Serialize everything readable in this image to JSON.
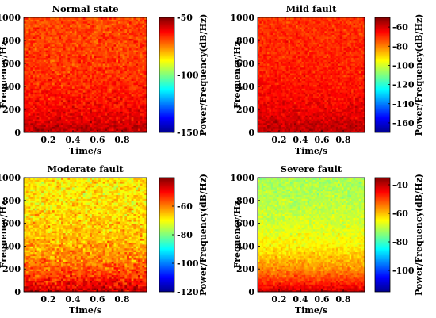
{
  "chart_data": [
    {
      "type": "heatmap",
      "title": "Normal state",
      "xlabel": "Time/s",
      "ylabel": "Frequency/Hz",
      "xlim": [
        0,
        1
      ],
      "ylim": [
        0,
        1000
      ],
      "xticks": [
        "0.2",
        "0.4",
        "0.6",
        "0.8"
      ],
      "yticks": [
        "0",
        "200",
        "400",
        "600",
        "800",
        "1000"
      ],
      "colorbar": {
        "label": "Power/Frequency(dB/Hz)",
        "range": [
          -150,
          -50
        ],
        "ticks": [
          "-50",
          "-100",
          "-150"
        ]
      },
      "colormap": "jet",
      "levels": {
        "low_freq_dB": -55,
        "high_freq_dB": -70,
        "noise_dB": 6
      }
    },
    {
      "type": "heatmap",
      "title": "Mild fault",
      "xlabel": "Time/s",
      "ylabel": "Frequency/Hz",
      "xlim": [
        0,
        1
      ],
      "ylim": [
        0,
        1000
      ],
      "xticks": [
        "0.2",
        "0.4",
        "0.6",
        "0.8"
      ],
      "yticks": [
        "0",
        "200",
        "400",
        "600",
        "800",
        "1000"
      ],
      "colorbar": {
        "label": "Power/Frequency(dB/Hz)",
        "range": [
          -170,
          -50
        ],
        "ticks": [
          "-60",
          "-80",
          "-100",
          "-120",
          "-140",
          "-160"
        ]
      },
      "colormap": "jet",
      "levels": {
        "low_freq_dB": -56,
        "high_freq_dB": -71,
        "noise_dB": 6
      }
    },
    {
      "type": "heatmap",
      "title": "Moderate fault",
      "xlabel": "Time/s",
      "ylabel": "Frequency/Hz",
      "xlim": [
        0,
        1
      ],
      "ylim": [
        0,
        1000
      ],
      "xticks": [
        "0.2",
        "0.4",
        "0.6",
        "0.8"
      ],
      "yticks": [
        "0",
        "200",
        "400",
        "600",
        "800",
        "1000"
      ],
      "colorbar": {
        "label": "Power/Frequency(dB/Hz)",
        "range": [
          -120,
          -40
        ],
        "ticks": [
          "-60",
          "-80",
          "-100",
          "-120"
        ]
      },
      "colormap": "jet",
      "levels": {
        "low_freq_dB": -45,
        "high_freq_dB": -70,
        "noise_dB": 7
      }
    },
    {
      "type": "heatmap",
      "title": "Severe fault",
      "xlabel": "Time/s",
      "ylabel": "Frequency/Hz",
      "xlim": [
        0,
        1
      ],
      "ylim": [
        0,
        1000
      ],
      "xticks": [
        "0.2",
        "0.4",
        "0.6",
        "0.8"
      ],
      "yticks": [
        "0",
        "200",
        "400",
        "600",
        "800",
        "1000"
      ],
      "colorbar": {
        "label": "Power/Frequency(dB/Hz)",
        "range": [
          -115,
          -35
        ],
        "ticks": [
          "-40",
          "-60",
          "-80",
          "-100"
        ]
      },
      "colormap": "jet",
      "levels": {
        "low_freq_dB": -40,
        "high_freq_dB": -73,
        "noise_dB": 4
      }
    }
  ]
}
